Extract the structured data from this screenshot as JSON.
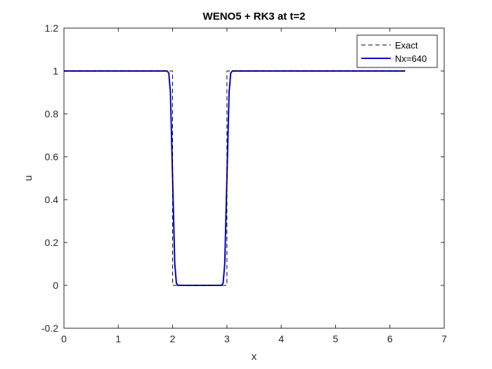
{
  "chart_data": {
    "type": "line",
    "title": "WENO5 + RK3 at t=2",
    "xlabel": "x",
    "ylabel": "u",
    "xlim": [
      0,
      7
    ],
    "ylim": [
      -0.2,
      1.2
    ],
    "xticks": [
      0,
      1,
      2,
      3,
      4,
      5,
      6,
      7
    ],
    "yticks": [
      -0.2,
      0,
      0.2,
      0.4,
      0.6,
      0.8,
      1,
      1.2
    ],
    "xtick_labels": [
      "0",
      "1",
      "2",
      "3",
      "4",
      "5",
      "6",
      "7"
    ],
    "ytick_labels": [
      "-0.2",
      "0",
      "0.2",
      "0.4",
      "0.6",
      "0.8",
      "1",
      "1.2"
    ],
    "grid": false,
    "legend_position": "top-right",
    "series": [
      {
        "name": "Exact",
        "color": "#000000",
        "style": "dashed",
        "x": [
          0,
          2.0,
          2.0,
          3.0,
          3.0,
          6.28
        ],
        "y": [
          1,
          1,
          0,
          0,
          1,
          1
        ]
      },
      {
        "name": "Nx=640",
        "color": "#0000cc",
        "style": "solid",
        "x": [
          0,
          1.9,
          1.93,
          1.96,
          2.0,
          2.04,
          2.07,
          2.1,
          2.5,
          2.9,
          2.93,
          2.96,
          3.0,
          3.04,
          3.07,
          3.1,
          6.28
        ],
        "y": [
          1,
          1,
          0.99,
          0.9,
          0.5,
          0.1,
          0.01,
          0,
          0,
          0,
          0.01,
          0.1,
          0.5,
          0.9,
          0.99,
          1,
          1
        ]
      }
    ]
  }
}
